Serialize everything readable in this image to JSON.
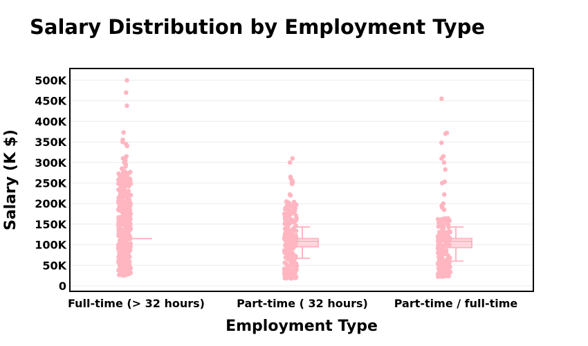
{
  "chart_data": {
    "type": "box",
    "title": "Salary Distribution by Employment Type",
    "xlabel": "Employment Type",
    "ylabel": "Salary (K $)",
    "ylim": [
      -10,
      520
    ],
    "yticks": [
      0,
      50,
      100,
      150,
      200,
      250,
      300,
      350,
      400,
      450,
      500
    ],
    "ytick_labels": [
      "0",
      "50K",
      "100K",
      "150K",
      "200K",
      "250K",
      "300K",
      "350K",
      "400K",
      "450K",
      "500K"
    ],
    "grid": true,
    "color": "#ffb6c1",
    "categories": [
      "Full-time (> 32 hours)",
      "Part-time ( 32 hours)",
      "Part-time / full-time"
    ],
    "boxes": [
      {
        "category": "Full-time (> 32 hours)",
        "q1": 115,
        "median": 115,
        "q3": 115,
        "whisker_low": 115,
        "whisker_high": 115,
        "points_range": [
          25,
          280
        ],
        "outliers": [
          500,
          470,
          438,
          373,
          355,
          350,
          345,
          340,
          315,
          312,
          310,
          305,
          300,
          295,
          290,
          285
        ]
      },
      {
        "category": "Part-time ( 32 hours)",
        "q1": 95,
        "median": 108,
        "q3": 115,
        "whisker_low": 67,
        "whisker_high": 143,
        "points_range": [
          18,
          205
        ],
        "outliers": [
          310,
          300,
          265,
          260,
          255,
          252,
          250,
          248,
          222,
          220
        ]
      },
      {
        "category": "Part-time / full-time",
        "q1": 93,
        "median": 108,
        "q3": 115,
        "whisker_low": 60,
        "whisker_high": 143,
        "points_range": [
          22,
          165
        ],
        "outliers": [
          455,
          372,
          370,
          348,
          315,
          310,
          300,
          283,
          253,
          250,
          222,
          200,
          195,
          190,
          185
        ]
      }
    ]
  }
}
